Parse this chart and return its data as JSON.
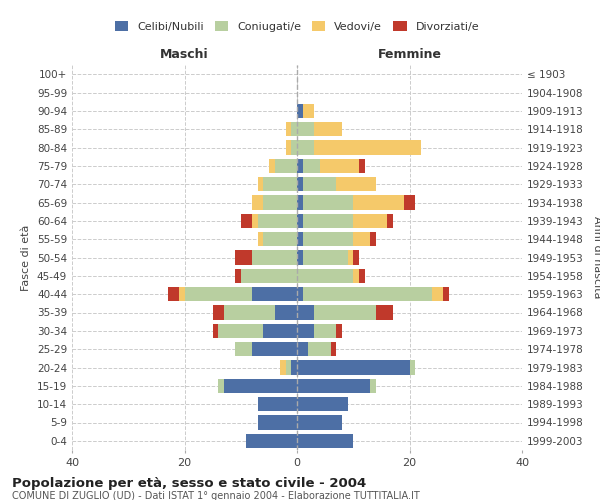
{
  "age_groups": [
    "0-4",
    "5-9",
    "10-14",
    "15-19",
    "20-24",
    "25-29",
    "30-34",
    "35-39",
    "40-44",
    "45-49",
    "50-54",
    "55-59",
    "60-64",
    "65-69",
    "70-74",
    "75-79",
    "80-84",
    "85-89",
    "90-94",
    "95-99",
    "100+"
  ],
  "birth_years": [
    "1999-2003",
    "1994-1998",
    "1989-1993",
    "1984-1988",
    "1979-1983",
    "1974-1978",
    "1969-1973",
    "1964-1968",
    "1959-1963",
    "1954-1958",
    "1949-1953",
    "1944-1948",
    "1939-1943",
    "1934-1938",
    "1929-1933",
    "1924-1928",
    "1919-1923",
    "1914-1918",
    "1909-1913",
    "1904-1908",
    "≤ 1903"
  ],
  "maschi": {
    "celibi": [
      9,
      7,
      7,
      13,
      1,
      8,
      6,
      4,
      8,
      0,
      0,
      0,
      0,
      0,
      0,
      0,
      0,
      0,
      0,
      0,
      0
    ],
    "coniugati": [
      0,
      0,
      0,
      1,
      1,
      3,
      8,
      9,
      12,
      10,
      8,
      6,
      7,
      6,
      6,
      4,
      1,
      1,
      0,
      0,
      0
    ],
    "vedovi": [
      0,
      0,
      0,
      0,
      1,
      0,
      0,
      0,
      1,
      0,
      0,
      1,
      1,
      2,
      1,
      1,
      1,
      1,
      0,
      0,
      0
    ],
    "divorziati": [
      0,
      0,
      0,
      0,
      0,
      0,
      1,
      2,
      2,
      1,
      3,
      0,
      2,
      0,
      0,
      0,
      0,
      0,
      0,
      0,
      0
    ]
  },
  "femmine": {
    "nubili": [
      10,
      8,
      9,
      13,
      20,
      2,
      3,
      3,
      1,
      0,
      1,
      1,
      1,
      1,
      1,
      1,
      0,
      0,
      1,
      0,
      0
    ],
    "coniugate": [
      0,
      0,
      0,
      1,
      1,
      4,
      4,
      11,
      23,
      10,
      8,
      9,
      9,
      9,
      6,
      3,
      3,
      3,
      0,
      0,
      0
    ],
    "vedove": [
      0,
      0,
      0,
      0,
      0,
      0,
      0,
      0,
      2,
      1,
      1,
      3,
      6,
      9,
      7,
      7,
      19,
      5,
      2,
      0,
      0
    ],
    "divorziate": [
      0,
      0,
      0,
      0,
      0,
      1,
      1,
      3,
      1,
      1,
      1,
      1,
      1,
      2,
      0,
      1,
      0,
      0,
      0,
      0,
      0
    ]
  },
  "colors": {
    "celibi": "#4d6fa5",
    "coniugati": "#b8cfa0",
    "vedovi": "#f5c96a",
    "divorziati": "#c0392b"
  },
  "title": "Popolazione per età, sesso e stato civile - 2004",
  "subtitle": "COMUNE DI ZUGLIO (UD) - Dati ISTAT 1° gennaio 2004 - Elaborazione TUTTITALIA.IT",
  "xlabel_left": "Maschi",
  "xlabel_right": "Femmine",
  "ylabel_left": "Fasce di età",
  "ylabel_right": "Anni di nascita",
  "xlim": 40,
  "background_color": "#ffffff"
}
